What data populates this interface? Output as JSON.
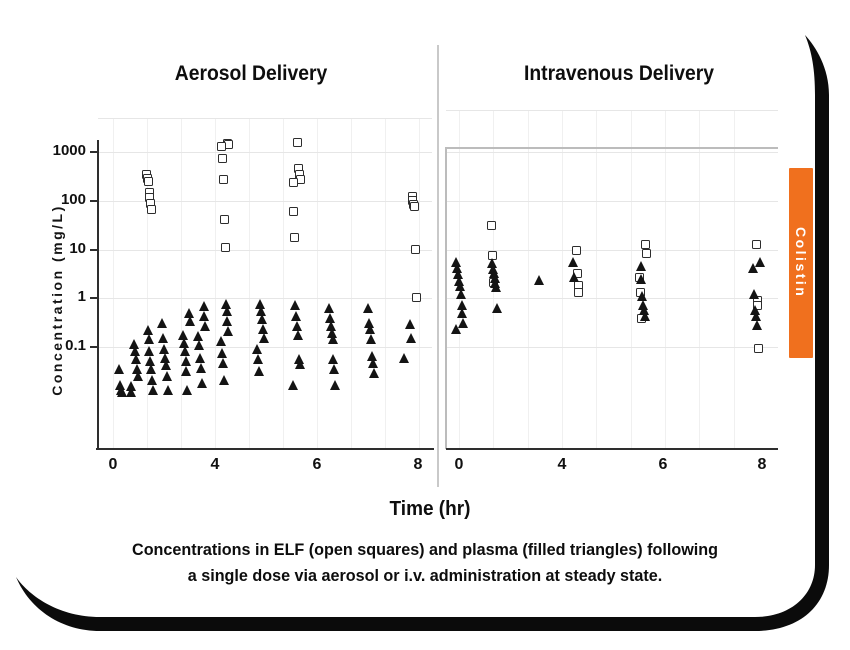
{
  "caption": {
    "line1": "Concentrations in ELF (open squares) and plasma (filled triangles) following",
    "line2": "a single dose via aerosol or i.v. administration at steady state."
  },
  "tab": {
    "label": "Colistin",
    "color": "#F0701E"
  },
  "colors": {
    "accent_orange": "#F0701E",
    "marker_dark": "#141414",
    "axis_dark": "#2e2e2e",
    "frame_black": "#0b0b0b"
  },
  "chart_data": {
    "type": "scatter",
    "x_axis": {
      "label": "Time (hr)",
      "ticks": [
        "0",
        "4",
        "6",
        "8"
      ],
      "tick_values": [
        0,
        4,
        6,
        8
      ]
    },
    "y_axis": {
      "label": "Concentration (mg/L)",
      "scale": "log",
      "ticks": [
        "1000",
        "100",
        "10",
        "1",
        "0.1"
      ],
      "tick_values": [
        1000,
        100,
        10,
        1,
        0.1
      ]
    },
    "legend_note": "open squares = ELF, filled triangles = plasma",
    "panels": [
      {
        "title": "Aerosol Delivery",
        "series": [
          {
            "name": "ELF",
            "marker": "open-square",
            "points": [
              [
                1.45,
                350
              ],
              [
                1.45,
                290
              ],
              [
                1.45,
                250
              ],
              [
                1.45,
                150
              ],
              [
                1.45,
                115
              ],
              [
                1.45,
                90
              ],
              [
                1.45,
                65
              ],
              [
                4.2,
                1500
              ],
              [
                4.2,
                1400
              ],
              [
                4.2,
                1300
              ],
              [
                4.2,
                750
              ],
              [
                4.2,
                270
              ],
              [
                4.2,
                42
              ],
              [
                4.2,
                11
              ],
              [
                5.6,
                1600
              ],
              [
                5.6,
                470
              ],
              [
                5.6,
                340
              ],
              [
                5.6,
                270
              ],
              [
                5.6,
                240
              ],
              [
                5.6,
                60
              ],
              [
                5.6,
                18
              ],
              [
                7.9,
                120
              ],
              [
                7.9,
                100
              ],
              [
                7.9,
                85
              ],
              [
                7.9,
                75
              ],
              [
                7.9,
                10
              ],
              [
                7.9,
                1.05
              ]
            ]
          },
          {
            "name": "plasma",
            "marker": "filled-triangle",
            "points": [
              [
                0.4,
                0.03
              ],
              [
                0.4,
                0.014
              ],
              [
                0.4,
                0.011
              ],
              [
                0.4,
                0.01
              ],
              [
                0.85,
                0.095
              ],
              [
                0.85,
                0.068
              ],
              [
                0.85,
                0.047
              ],
              [
                0.85,
                0.03
              ],
              [
                0.85,
                0.021
              ],
              [
                0.85,
                0.013
              ],
              [
                0.85,
                0.01
              ],
              [
                1.45,
                0.19
              ],
              [
                1.45,
                0.12
              ],
              [
                1.45,
                0.07
              ],
              [
                1.45,
                0.044
              ],
              [
                1.45,
                0.03
              ],
              [
                1.45,
                0.018
              ],
              [
                1.45,
                0.011
              ],
              [
                2.1,
                0.26
              ],
              [
                2.1,
                0.13
              ],
              [
                2.1,
                0.076
              ],
              [
                2.1,
                0.05
              ],
              [
                2.1,
                0.035
              ],
              [
                2.1,
                0.021
              ],
              [
                2.1,
                0.011
              ],
              [
                2.9,
                0.41
              ],
              [
                2.9,
                0.28
              ],
              [
                2.9,
                0.15
              ],
              [
                2.9,
                0.1
              ],
              [
                2.9,
                0.068
              ],
              [
                2.9,
                0.044
              ],
              [
                2.9,
                0.027
              ],
              [
                2.9,
                0.011
              ],
              [
                3.5,
                0.57
              ],
              [
                3.5,
                0.36
              ],
              [
                3.5,
                0.22
              ],
              [
                3.5,
                0.14
              ],
              [
                3.5,
                0.09
              ],
              [
                3.5,
                0.05
              ],
              [
                3.5,
                0.031
              ],
              [
                3.5,
                0.015
              ],
              [
                4.2,
                0.63
              ],
              [
                4.2,
                0.45
              ],
              [
                4.2,
                0.28
              ],
              [
                4.2,
                0.18
              ],
              [
                4.2,
                0.11
              ],
              [
                4.2,
                0.062
              ],
              [
                4.2,
                0.039
              ],
              [
                4.2,
                0.018
              ],
              [
                4.9,
                0.63
              ],
              [
                4.9,
                0.45
              ],
              [
                4.9,
                0.31
              ],
              [
                4.9,
                0.2
              ],
              [
                4.9,
                0.125
              ],
              [
                4.9,
                0.075
              ],
              [
                4.9,
                0.047
              ],
              [
                4.9,
                0.027
              ],
              [
                5.6,
                0.62
              ],
              [
                5.6,
                0.36
              ],
              [
                5.6,
                0.22
              ],
              [
                5.6,
                0.15
              ],
              [
                5.6,
                0.047
              ],
              [
                5.6,
                0.037
              ],
              [
                5.6,
                0.014
              ],
              [
                6.3,
                0.52
              ],
              [
                6.3,
                0.33
              ],
              [
                6.3,
                0.22
              ],
              [
                6.3,
                0.16
              ],
              [
                6.3,
                0.12
              ],
              [
                6.3,
                0.047
              ],
              [
                6.3,
                0.029
              ],
              [
                6.3,
                0.014
              ],
              [
                7.1,
                0.52
              ],
              [
                7.1,
                0.26
              ],
              [
                7.1,
                0.2
              ],
              [
                7.1,
                0.12
              ],
              [
                7.1,
                0.054
              ],
              [
                7.1,
                0.039
              ],
              [
                7.1,
                0.024
              ],
              [
                7.8,
                0.25
              ],
              [
                7.8,
                0.13
              ],
              [
                7.8,
                0.05
              ]
            ]
          }
        ]
      },
      {
        "title": "Intravenous Delivery",
        "series": [
          {
            "name": "ELF",
            "marker": "open-square",
            "points": [
              [
                1.4,
                31
              ],
              [
                1.4,
                7.5
              ],
              [
                1.4,
                2.1
              ],
              [
                4.3,
                9.5
              ],
              [
                4.3,
                3.2
              ],
              [
                4.3,
                1.8
              ],
              [
                4.3,
                1.3
              ],
              [
                5.6,
                13
              ],
              [
                5.6,
                8.3
              ],
              [
                5.6,
                2.7
              ],
              [
                5.6,
                1.3
              ],
              [
                5.6,
                0.39
              ],
              [
                7.9,
                13
              ],
              [
                7.9,
                0.91
              ],
              [
                7.9,
                0.72
              ],
              [
                7.9,
                0.095
              ]
            ]
          },
          {
            "name": "plasma",
            "marker": "filled-triangle",
            "points": [
              [
                0.05,
                4.6
              ],
              [
                0.05,
                3.4
              ],
              [
                0.05,
                2.6
              ],
              [
                0.05,
                1.9
              ],
              [
                0.05,
                1.5
              ],
              [
                0.05,
                1.0
              ],
              [
                0.05,
                0.62
              ],
              [
                0.05,
                0.41
              ],
              [
                0.05,
                0.26
              ],
              [
                0.05,
                0.2
              ],
              [
                1.4,
                4.3
              ],
              [
                1.4,
                3.3
              ],
              [
                1.4,
                2.7
              ],
              [
                1.4,
                2.2
              ],
              [
                1.4,
                1.7
              ],
              [
                1.4,
                1.4
              ],
              [
                1.4,
                0.52
              ],
              [
                3.0,
                2.0
              ],
              [
                4.3,
                4.6
              ],
              [
                4.3,
                2.3
              ],
              [
                5.6,
                3.9
              ],
              [
                5.6,
                2.1
              ],
              [
                5.6,
                0.91
              ],
              [
                5.6,
                0.62
              ],
              [
                5.6,
                0.49
              ],
              [
                5.6,
                0.36
              ],
              [
                7.9,
                4.7
              ],
              [
                7.9,
                3.4
              ],
              [
                7.9,
                1.0
              ],
              [
                7.9,
                0.49
              ],
              [
                7.9,
                0.36
              ],
              [
                7.9,
                0.24
              ]
            ]
          }
        ]
      }
    ]
  }
}
